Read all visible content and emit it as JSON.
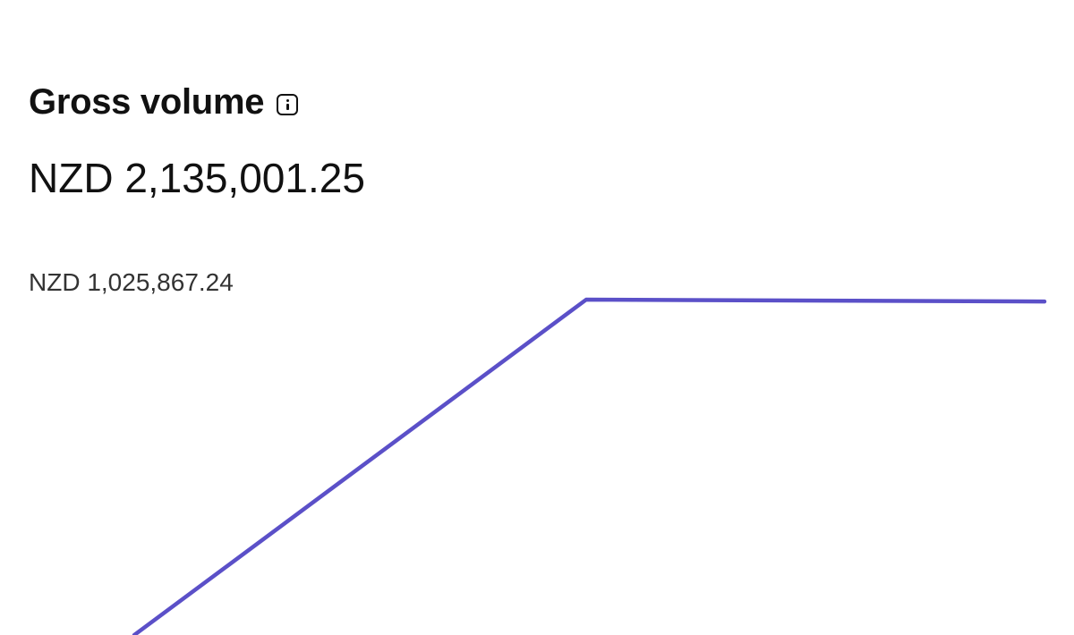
{
  "header": {
    "title": "Gross volume",
    "info_icon": "info-icon",
    "total": "NZD 2,135,001.25"
  },
  "chart_data": {
    "type": "line",
    "title": "Gross volume",
    "y_max_label": "NZD 1,025,867.24",
    "ylim": [
      0,
      1025867.24
    ],
    "x": [
      0,
      1,
      2
    ],
    "series": [
      {
        "values": [
          0,
          1025867.24,
          1020000
        ],
        "color": "#5b50c8"
      }
    ],
    "grid": false
  }
}
